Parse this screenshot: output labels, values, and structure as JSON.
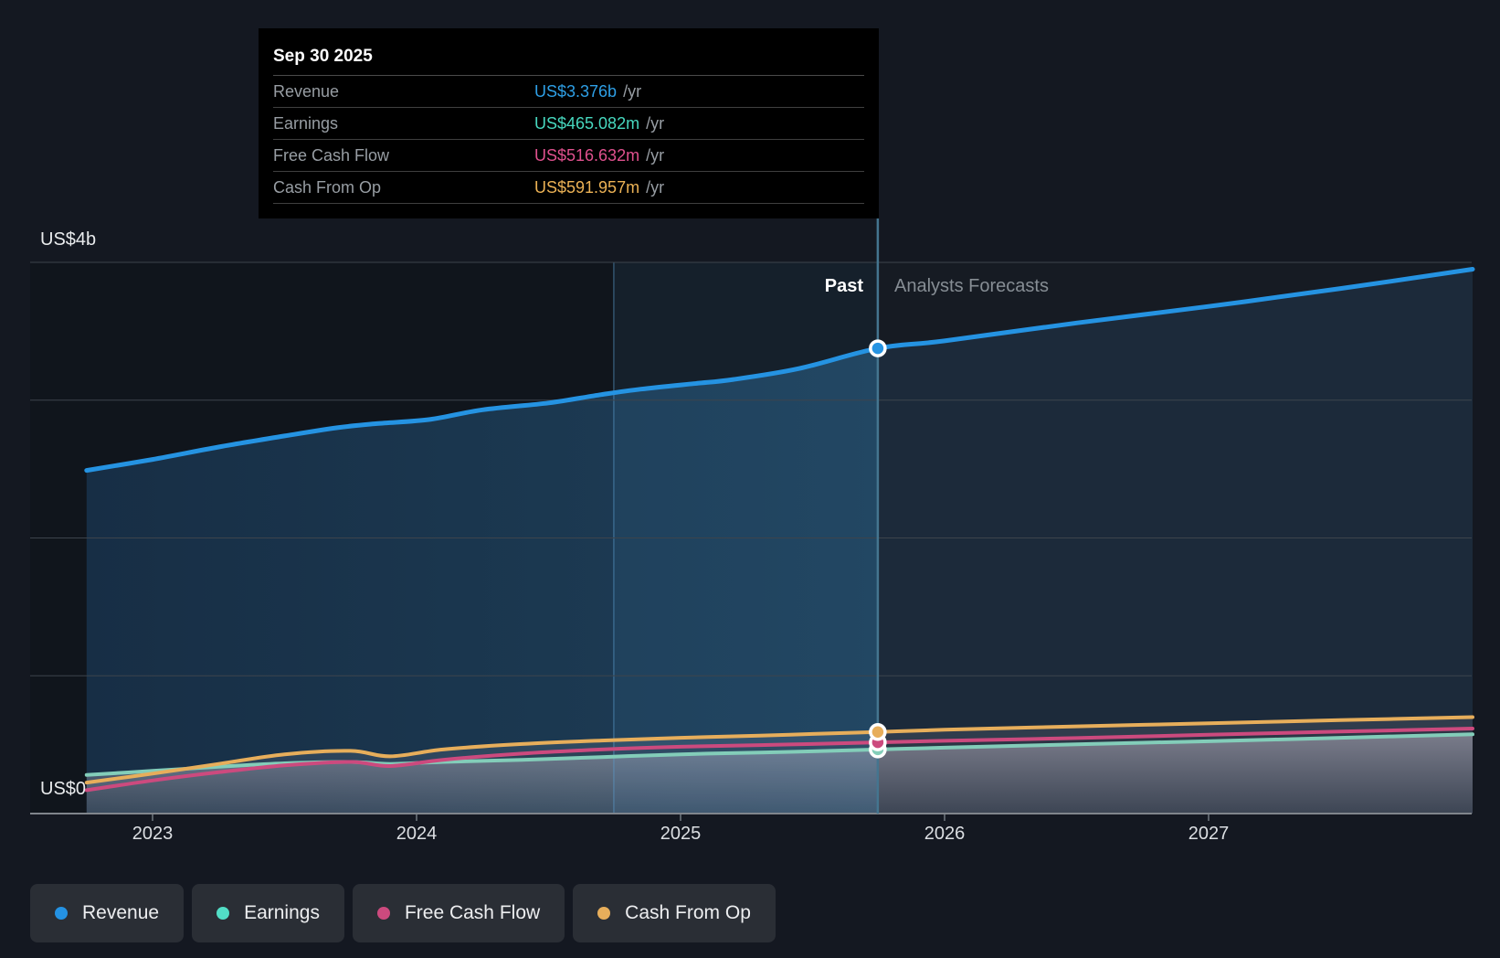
{
  "page": {
    "background": "#141821"
  },
  "tooltip": {
    "date": "Sep 30 2025",
    "rows": [
      {
        "id": "revenue",
        "label": "Revenue",
        "value": "US$3.376b",
        "suffix": "/yr",
        "color": "#2e9fe6"
      },
      {
        "id": "earnings",
        "label": "Earnings",
        "value": "US$465.082m",
        "suffix": "/yr",
        "color": "#47d8bf"
      },
      {
        "id": "free-cash-flow",
        "label": "Free Cash Flow",
        "value": "US$516.632m",
        "suffix": "/yr",
        "color": "#e0518e"
      },
      {
        "id": "cash-from-op",
        "label": "Cash From Op",
        "value": "US$591.957m",
        "suffix": "/yr",
        "color": "#ecb255"
      }
    ]
  },
  "y_axis": {
    "top_label": "US$4b",
    "bottom_label": "US$0"
  },
  "x_axis": {
    "tick_labels": [
      "2023",
      "2024",
      "2025",
      "2026",
      "2027"
    ],
    "tick_years": [
      2023,
      2024,
      2025,
      2026,
      2027
    ]
  },
  "sections": {
    "past_label": "Past",
    "forecast_label": "Analysts Forecasts"
  },
  "legend": {
    "items": [
      {
        "id": "revenue",
        "label": "Revenue",
        "color": "#2492e3"
      },
      {
        "id": "earnings",
        "label": "Earnings",
        "color": "#52dec6"
      },
      {
        "id": "free-cash-flow",
        "label": "Free Cash Flow",
        "color": "#cc4a7e"
      },
      {
        "id": "cash-from-op",
        "label": "Cash From Op",
        "color": "#e7ae5b"
      }
    ]
  },
  "chart_data": {
    "type": "area",
    "x_unit": "calendar year (decimal)",
    "x_range": [
      2022.75,
      2028.0
    ],
    "y_unit": "US$ billions",
    "ylim_billions": [
      0,
      4
    ],
    "y_gridlines_billions": [
      1,
      2,
      3,
      4
    ],
    "grid": true,
    "legend_position": "bottom-left",
    "divider": {
      "x": 2025.747,
      "date": "Sep 30 2025"
    },
    "highlight_band_years": [
      2024.747,
      2025.747
    ],
    "series": [
      {
        "name": "Revenue",
        "color": "#2593e2",
        "line_width": 5,
        "points_billions": [
          [
            2022.75,
            2.49
          ],
          [
            2023.0,
            2.57
          ],
          [
            2023.25,
            2.66
          ],
          [
            2023.5,
            2.74
          ],
          [
            2023.7,
            2.8
          ],
          [
            2023.85,
            2.83
          ],
          [
            2024.05,
            2.86
          ],
          [
            2024.25,
            2.93
          ],
          [
            2024.5,
            2.98
          ],
          [
            2024.7,
            3.04
          ],
          [
            2024.85,
            3.08
          ],
          [
            2025.05,
            3.12
          ],
          [
            2025.2,
            3.15
          ],
          [
            2025.45,
            3.23
          ],
          [
            2025.747,
            3.376
          ],
          [
            2026.0,
            3.43
          ],
          [
            2026.5,
            3.56
          ],
          [
            2027.0,
            3.68
          ],
          [
            2027.5,
            3.81
          ],
          [
            2028.0,
            3.95
          ]
        ]
      },
      {
        "name": "Earnings",
        "color": "#83cdb9",
        "line_width": 4,
        "points_billions": [
          [
            2022.75,
            0.28
          ],
          [
            2023.0,
            0.31
          ],
          [
            2023.25,
            0.34
          ],
          [
            2023.5,
            0.365
          ],
          [
            2023.75,
            0.375
          ],
          [
            2023.9,
            0.36
          ],
          [
            2024.1,
            0.375
          ],
          [
            2024.4,
            0.39
          ],
          [
            2024.7,
            0.41
          ],
          [
            2025.0,
            0.43
          ],
          [
            2025.3,
            0.443
          ],
          [
            2025.5,
            0.452
          ],
          [
            2025.747,
            0.465
          ],
          [
            2026.0,
            0.478
          ],
          [
            2026.5,
            0.503
          ],
          [
            2027.0,
            0.525
          ],
          [
            2027.5,
            0.55
          ],
          [
            2028.0,
            0.575
          ]
        ]
      },
      {
        "name": "Free Cash Flow",
        "color": "#cc4a7e",
        "line_width": 4,
        "points_billions": [
          [
            2022.75,
            0.17
          ],
          [
            2023.0,
            0.24
          ],
          [
            2023.25,
            0.3
          ],
          [
            2023.5,
            0.35
          ],
          [
            2023.75,
            0.375
          ],
          [
            2023.9,
            0.345
          ],
          [
            2024.1,
            0.39
          ],
          [
            2024.4,
            0.435
          ],
          [
            2024.7,
            0.465
          ],
          [
            2025.0,
            0.485
          ],
          [
            2025.3,
            0.497
          ],
          [
            2025.5,
            0.505
          ],
          [
            2025.747,
            0.5166
          ],
          [
            2026.0,
            0.528
          ],
          [
            2026.5,
            0.548
          ],
          [
            2027.0,
            0.572
          ],
          [
            2027.5,
            0.595
          ],
          [
            2028.0,
            0.617
          ]
        ]
      },
      {
        "name": "Cash From Op",
        "color": "#e7ae5b",
        "line_width": 4,
        "points_billions": [
          [
            2022.75,
            0.225
          ],
          [
            2023.0,
            0.29
          ],
          [
            2023.25,
            0.36
          ],
          [
            2023.5,
            0.43
          ],
          [
            2023.75,
            0.455
          ],
          [
            2023.9,
            0.415
          ],
          [
            2024.1,
            0.465
          ],
          [
            2024.4,
            0.505
          ],
          [
            2024.7,
            0.53
          ],
          [
            2025.0,
            0.55
          ],
          [
            2025.3,
            0.565
          ],
          [
            2025.5,
            0.578
          ],
          [
            2025.747,
            0.592
          ],
          [
            2026.0,
            0.608
          ],
          [
            2026.5,
            0.633
          ],
          [
            2027.0,
            0.655
          ],
          [
            2027.5,
            0.678
          ],
          [
            2028.0,
            0.7
          ]
        ]
      }
    ],
    "markers_at_divider": [
      {
        "series": "Earnings",
        "value_billions": 0.465082,
        "display": "US$465.082m /yr"
      },
      {
        "series": "Free Cash Flow",
        "value_billions": 0.516632,
        "display": "US$516.632m /yr"
      },
      {
        "series": "Cash From Op",
        "value_billions": 0.591957,
        "display": "US$591.957m /yr"
      },
      {
        "series": "Revenue",
        "value_billions": 3.376,
        "display": "US$3.376b /yr"
      }
    ]
  }
}
